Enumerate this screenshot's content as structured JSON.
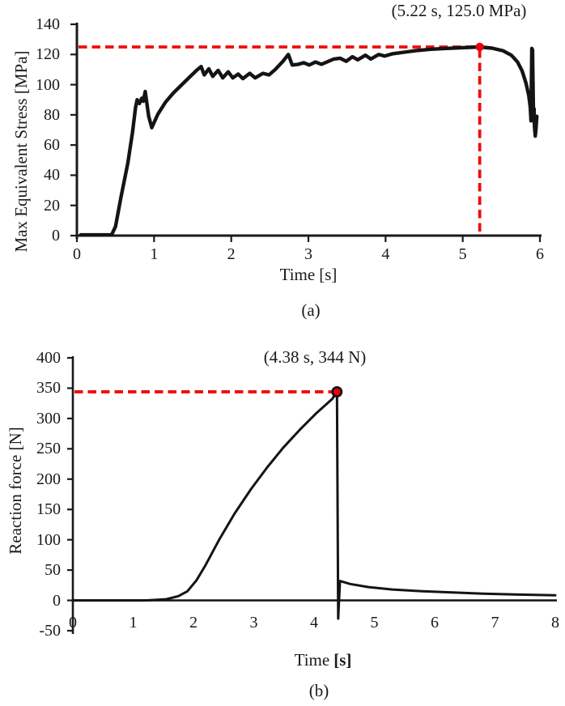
{
  "page": {
    "background": "#ffffff",
    "text_color": "#1a1a1a"
  },
  "chart_data": [
    {
      "id": "a",
      "type": "line",
      "caption": "(a)",
      "xlabel": "Time",
      "xlabel_unit": "[s]",
      "xlabel_unit_bold": false,
      "ylabel": "Max Equivalent Stress [MPa]",
      "xlim": [
        0,
        6
      ],
      "ylim": [
        0,
        140
      ],
      "xticks": [
        0,
        1,
        2,
        3,
        4,
        5,
        6
      ],
      "yticks": [
        140,
        120,
        100,
        80,
        60,
        40,
        20,
        0
      ],
      "grid": false,
      "legend": "none",
      "line_color": "#141414",
      "axis_color": "#1a1a1a",
      "accent_color": "#ee0d0d",
      "annotation": {
        "label": "(5.22 s, 125.0 MPa)",
        "x": 5.22,
        "y": 125.0
      },
      "guides": [
        "horizontal",
        "vertical"
      ],
      "marker": {
        "r": 5.2,
        "fill": "#e8000d",
        "stroke": "none",
        "stroke_width": 0
      },
      "series": [
        {
          "name": "max-equivalent-stress",
          "points": [
            [
              0.05,
              0.5
            ],
            [
              0.45,
              0.5
            ],
            [
              0.5,
              6
            ],
            [
              0.57,
              25
            ],
            [
              0.66,
              48
            ],
            [
              0.72,
              68
            ],
            [
              0.76,
              85
            ],
            [
              0.78,
              90
            ],
            [
              0.81,
              87.5
            ],
            [
              0.84,
              91
            ],
            [
              0.86,
              89
            ],
            [
              0.885,
              95.5
            ],
            [
              0.93,
              79
            ],
            [
              0.97,
              71.5
            ],
            [
              1.05,
              80.5
            ],
            [
              1.15,
              88.5
            ],
            [
              1.25,
              94.5
            ],
            [
              1.35,
              99.5
            ],
            [
              1.45,
              104.5
            ],
            [
              1.55,
              109.5
            ],
            [
              1.61,
              112
            ],
            [
              1.65,
              106.5
            ],
            [
              1.71,
              110.5
            ],
            [
              1.76,
              105.5
            ],
            [
              1.83,
              109.5
            ],
            [
              1.89,
              104.5
            ],
            [
              1.96,
              108.5
            ],
            [
              2.02,
              104.5
            ],
            [
              2.09,
              107
            ],
            [
              2.15,
              104
            ],
            [
              2.24,
              107.5
            ],
            [
              2.31,
              104.5
            ],
            [
              2.41,
              107.5
            ],
            [
              2.49,
              106.5
            ],
            [
              2.57,
              110
            ],
            [
              2.67,
              115.5
            ],
            [
              2.74,
              120
            ],
            [
              2.79,
              113
            ],
            [
              2.87,
              113.5
            ],
            [
              2.94,
              114.5
            ],
            [
              3.01,
              113
            ],
            [
              3.09,
              115
            ],
            [
              3.17,
              113.5
            ],
            [
              3.33,
              117
            ],
            [
              3.41,
              117.5
            ],
            [
              3.49,
              115.5
            ],
            [
              3.57,
              118.5
            ],
            [
              3.64,
              116.5
            ],
            [
              3.74,
              119.5
            ],
            [
              3.81,
              117
            ],
            [
              3.91,
              120
            ],
            [
              3.99,
              119
            ],
            [
              4.09,
              120.5
            ],
            [
              4.24,
              121.5
            ],
            [
              4.39,
              122.5
            ],
            [
              4.59,
              123.5
            ],
            [
              4.79,
              124
            ],
            [
              4.99,
              124.5
            ],
            [
              5.22,
              125.0
            ],
            [
              5.38,
              124.2
            ],
            [
              5.52,
              122.5
            ],
            [
              5.63,
              119.5
            ],
            [
              5.71,
              115
            ],
            [
              5.77,
              109
            ],
            [
              5.82,
              101
            ],
            [
              5.855,
              93
            ],
            [
              5.875,
              85
            ],
            [
              5.885,
              76
            ],
            [
              5.895,
              124
            ],
            [
              5.905,
              123
            ],
            [
              5.915,
              85
            ],
            [
              5.92,
              76
            ],
            [
              5.925,
              84
            ],
            [
              5.93,
              72
            ],
            [
              5.94,
              66
            ],
            [
              5.95,
              71
            ],
            [
              5.96,
              79
            ]
          ]
        }
      ]
    },
    {
      "id": "b",
      "type": "line",
      "caption": "(b)",
      "xlabel": "Time",
      "xlabel_unit": "[s]",
      "xlabel_unit_bold": true,
      "ylabel": "Reaction force [N]",
      "xlim": [
        0,
        8
      ],
      "ylim": [
        -50,
        400
      ],
      "xticks": [
        0,
        1,
        2,
        3,
        4,
        5,
        6,
        7,
        8
      ],
      "yticks": [
        400,
        350,
        300,
        250,
        200,
        150,
        100,
        50,
        0,
        -50
      ],
      "grid": false,
      "legend": "none",
      "line_color": "#141414",
      "axis_color": "#1a1a1a",
      "accent_color": "#ee0d0d",
      "annotation": {
        "label": "(4.38 s, 344 N)",
        "x": 4.38,
        "y": 344
      },
      "guides": [
        "horizontal"
      ],
      "marker": {
        "r": 5.6,
        "fill": "#e8000d",
        "stroke": "#111111",
        "stroke_width": 2.6
      },
      "x_axis_at": 0,
      "series": [
        {
          "name": "reaction-force",
          "points": [
            [
              0,
              0
            ],
            [
              1.2,
              0
            ],
            [
              1.55,
              2
            ],
            [
              1.75,
              7
            ],
            [
              1.9,
              15
            ],
            [
              2.05,
              33
            ],
            [
              2.2,
              58
            ],
            [
              2.42,
              99
            ],
            [
              2.68,
              143
            ],
            [
              2.95,
              183
            ],
            [
              3.22,
              219
            ],
            [
              3.49,
              252
            ],
            [
              3.76,
              281
            ],
            [
              4.03,
              308
            ],
            [
              4.3,
              332
            ],
            [
              4.38,
              344
            ],
            [
              4.4,
              -30
            ],
            [
              4.43,
              32
            ],
            [
              4.6,
              27
            ],
            [
              4.9,
              22
            ],
            [
              5.3,
              18
            ],
            [
              5.8,
              15
            ],
            [
              6.3,
              13
            ],
            [
              6.8,
              11
            ],
            [
              7.4,
              9.5
            ],
            [
              8.0,
              8.5
            ]
          ]
        }
      ]
    }
  ]
}
